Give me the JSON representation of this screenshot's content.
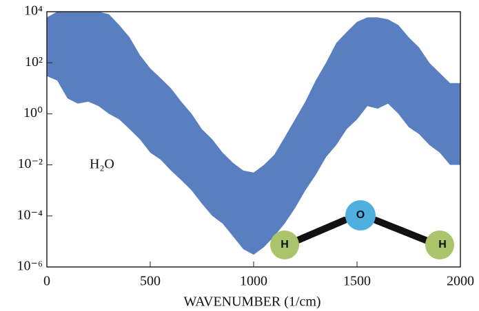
{
  "chart_data": {
    "type": "band",
    "xlabel": "WAVENUMBER (1/cm)",
    "annotations": [
      "H₂O"
    ],
    "molecule_labels": [
      "H",
      "O",
      "H"
    ],
    "color": "#5a7fc0",
    "yscale": "log",
    "xlim": [
      0,
      2000
    ],
    "xticks": [
      0,
      500,
      1000,
      1500,
      2000
    ],
    "ylim": [
      1e-06,
      10000.0
    ],
    "yticks": [
      {
        "value": 1e-06,
        "label": "10⁻⁶"
      },
      {
        "value": 0.0001,
        "label": "10⁻⁴"
      },
      {
        "value": 0.01,
        "label": "10⁻²"
      },
      {
        "value": 1,
        "label": "10⁰"
      },
      {
        "value": 100,
        "label": "10²"
      },
      {
        "value": 10000,
        "label": "10⁴"
      }
    ],
    "x": [
      0,
      50,
      100,
      150,
      200,
      250,
      300,
      350,
      400,
      450,
      500,
      550,
      600,
      650,
      700,
      750,
      800,
      850,
      900,
      950,
      1000,
      1050,
      1100,
      1150,
      1200,
      1250,
      1300,
      1350,
      1400,
      1450,
      1500,
      1550,
      1600,
      1650,
      1700,
      1750,
      1800,
      1850,
      1900,
      1950,
      2000
    ],
    "high": [
      6000.0,
      10000.0,
      10000.0,
      10000.0,
      10000.0,
      10000.0,
      8000.0,
      3000.0,
      1000.0,
      200.0,
      60.0,
      25.0,
      10.0,
      3,
      1,
      0.25,
      0.1,
      0.03,
      0.012,
      0.006,
      0.005,
      0.01,
      0.025,
      0.12,
      0.6,
      3,
      20.0,
      100.0,
      600.0,
      1600.0,
      4000.0,
      6000.0,
      6000.0,
      5000.0,
      3000.0,
      1000.0,
      400.0,
      100.0,
      40.0,
      16.0,
      16.0
    ],
    "low": [
      30,
      20,
      4,
      2.5,
      3,
      2,
      1,
      0.6,
      0.25,
      0.1,
      0.03,
      0.016,
      0.006,
      0.0025,
      0.001,
      0.0003,
      0.0001,
      5e-05,
      1.6e-05,
      5e-06,
      3e-06,
      6e-06,
      1.6e-05,
      5e-05,
      0.0002,
      0.001,
      0.004,
      0.02,
      0.06,
      0.25,
      0.6,
      2,
      1.6,
      2.5,
      1,
      0.3,
      0.16,
      0.06,
      0.03,
      0.01,
      0.01
    ]
  }
}
